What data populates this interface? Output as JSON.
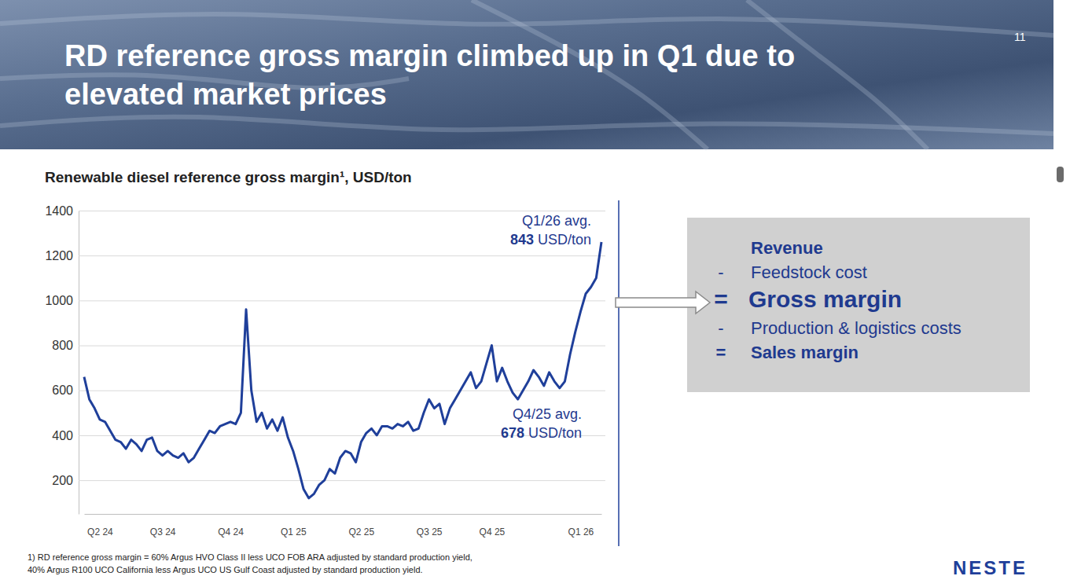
{
  "chart_data": {
    "type": "line",
    "title": "Renewable diesel reference gross margin¹, USD/ton",
    "categories": [
      null,
      null,
      null,
      "Q2 24",
      null,
      null,
      null,
      null,
      null,
      null,
      null,
      null,
      null,
      null,
      null,
      "Q3 24",
      null,
      null,
      null,
      null,
      null,
      null,
      null,
      null,
      null,
      null,
      null,
      null,
      "Q4 24",
      null,
      null,
      null,
      null,
      null,
      null,
      null,
      null,
      null,
      null,
      null,
      "Q1 25",
      null,
      null,
      null,
      null,
      null,
      null,
      null,
      null,
      null,
      null,
      null,
      null,
      "Q2 25",
      null,
      null,
      null,
      null,
      null,
      null,
      null,
      null,
      null,
      null,
      null,
      null,
      "Q3 25",
      null,
      null,
      null,
      null,
      null,
      null,
      null,
      null,
      null,
      null,
      null,
      "Q4 25",
      null,
      null,
      null,
      null,
      null,
      null,
      null,
      null,
      null,
      null,
      null,
      null,
      null,
      null,
      null,
      null,
      "Q1 26",
      null,
      null,
      null,
      null
    ],
    "values": [
      660,
      560,
      520,
      470,
      460,
      420,
      380,
      370,
      340,
      380,
      360,
      330,
      380,
      390,
      330,
      310,
      330,
      310,
      300,
      320,
      280,
      300,
      340,
      380,
      420,
      410,
      440,
      450,
      460,
      450,
      500,
      960,
      600,
      460,
      500,
      430,
      470,
      420,
      480,
      390,
      330,
      250,
      160,
      120,
      140,
      180,
      200,
      250,
      230,
      300,
      330,
      320,
      280,
      370,
      410,
      430,
      400,
      440,
      440,
      430,
      450,
      440,
      460,
      420,
      430,
      500,
      560,
      520,
      540,
      450,
      520,
      560,
      600,
      640,
      680,
      610,
      640,
      720,
      800,
      640,
      700,
      640,
      590,
      560,
      600,
      640,
      690,
      660,
      620,
      680,
      640,
      610,
      640,
      760,
      860,
      950,
      1030,
      1060,
      1100,
      1260
    ],
    "color": "#1f3f9a",
    "ylim": [
      50,
      1400
    ],
    "yticks": [
      200,
      400,
      600,
      800,
      1000,
      1200,
      1400
    ],
    "grid": true,
    "annotations": [
      {
        "text": "Q1/26 avg.",
        "value": 843,
        "unit": "USD/ton"
      },
      {
        "text": "Q4/25 avg.",
        "value": 678,
        "unit": "USD/ton"
      }
    ]
  },
  "slide": {
    "title": "RD reference gross margin climbed up in Q1 due to elevated market prices",
    "page_number": "11",
    "definition": [
      {
        "text": "Revenue"
      },
      {
        "sign": "-",
        "text": "Feedstock cost"
      },
      {
        "sign": "=",
        "text": "Gross margin"
      },
      {
        "sign": "-",
        "text": "Production & logistics costs"
      },
      {
        "sign": "=",
        "text": "Sales margin"
      }
    ],
    "footnote": [
      "1) RD reference gross margin = 60% Argus HVO Class II less UCO FOB ARA adjusted by standard production yield,",
      "40% Argus R100 UCO California less Argus UCO US Gulf Coast adjusted by standard production yield."
    ],
    "logo": "NESTE"
  }
}
